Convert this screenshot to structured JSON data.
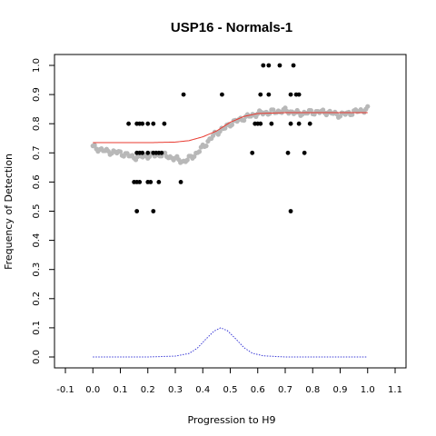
{
  "chart_data": {
    "type": "scatter",
    "title": "USP16 - Normals-1",
    "xlabel": "Progression to H9",
    "ylabel": "Frequency of Detection",
    "xlim": [
      -0.1,
      1.1
    ],
    "ylim": [
      0.0,
      1.0
    ],
    "x_ticks": [
      "-0.1",
      "0.0",
      "0.1",
      "0.2",
      "0.3",
      "0.4",
      "0.5",
      "0.6",
      "0.7",
      "0.8",
      "0.9",
      "1.0",
      "1.1"
    ],
    "y_ticks": [
      "0.0",
      "0.1",
      "0.2",
      "0.3",
      "0.4",
      "0.5",
      "0.6",
      "0.7",
      "0.8",
      "0.9",
      "1.0"
    ],
    "grid": false,
    "legend": "none",
    "series": [
      {
        "kind": "scatter",
        "color": "#000000",
        "points": [
          [
            0.13,
            0.8
          ],
          [
            0.16,
            0.8
          ],
          [
            0.17,
            0.8
          ],
          [
            0.18,
            0.8
          ],
          [
            0.2,
            0.8
          ],
          [
            0.22,
            0.8
          ],
          [
            0.26,
            0.8
          ],
          [
            0.16,
            0.7
          ],
          [
            0.17,
            0.7
          ],
          [
            0.18,
            0.7
          ],
          [
            0.2,
            0.7
          ],
          [
            0.22,
            0.7
          ],
          [
            0.23,
            0.7
          ],
          [
            0.24,
            0.7
          ],
          [
            0.25,
            0.7
          ],
          [
            0.15,
            0.6
          ],
          [
            0.16,
            0.6
          ],
          [
            0.17,
            0.6
          ],
          [
            0.2,
            0.6
          ],
          [
            0.21,
            0.6
          ],
          [
            0.24,
            0.6
          ],
          [
            0.32,
            0.6
          ],
          [
            0.16,
            0.5
          ],
          [
            0.22,
            0.5
          ],
          [
            0.33,
            0.9
          ],
          [
            0.47,
            0.9
          ],
          [
            0.58,
            0.7
          ],
          [
            0.59,
            0.8
          ],
          [
            0.6,
            0.8
          ],
          [
            0.61,
            0.8
          ],
          [
            0.61,
            0.9
          ],
          [
            0.62,
            1.0
          ],
          [
            0.64,
            1.0
          ],
          [
            0.64,
            0.9
          ],
          [
            0.65,
            0.8
          ],
          [
            0.68,
            1.0
          ],
          [
            0.71,
            0.7
          ],
          [
            0.72,
            0.9
          ],
          [
            0.72,
            0.8
          ],
          [
            0.72,
            0.5
          ],
          [
            0.73,
            1.0
          ],
          [
            0.74,
            0.9
          ],
          [
            0.75,
            0.9
          ],
          [
            0.75,
            0.8
          ],
          [
            0.77,
            0.7
          ],
          [
            0.79,
            0.8
          ]
        ]
      },
      {
        "kind": "moving-average",
        "color": "#b8b8b8",
        "x": [
          0.0,
          0.05,
          0.1,
          0.15,
          0.2,
          0.25,
          0.3,
          0.33,
          0.35,
          0.38,
          0.4,
          0.43,
          0.45,
          0.48,
          0.5,
          0.55,
          0.6,
          0.65,
          0.7,
          0.75,
          0.8,
          0.85,
          0.9,
          0.95,
          1.0
        ],
        "y": [
          0.72,
          0.705,
          0.7,
          0.685,
          0.69,
          0.695,
          0.68,
          0.67,
          0.68,
          0.7,
          0.72,
          0.75,
          0.77,
          0.785,
          0.8,
          0.82,
          0.835,
          0.84,
          0.845,
          0.835,
          0.84,
          0.84,
          0.83,
          0.84,
          0.85
        ]
      },
      {
        "kind": "fitted-curve",
        "color": "#e8392f",
        "x": [
          0.0,
          0.1,
          0.2,
          0.3,
          0.35,
          0.4,
          0.45,
          0.5,
          0.55,
          0.6,
          0.7,
          0.8,
          0.9,
          1.0
        ],
        "y": [
          0.735,
          0.735,
          0.735,
          0.737,
          0.742,
          0.755,
          0.775,
          0.805,
          0.825,
          0.835,
          0.838,
          0.838,
          0.838,
          0.838
        ]
      },
      {
        "kind": "density",
        "color": "#3a3ad6",
        "x": [
          0.0,
          0.2,
          0.3,
          0.35,
          0.38,
          0.41,
          0.44,
          0.465,
          0.49,
          0.52,
          0.55,
          0.58,
          0.62,
          0.7,
          0.8,
          1.0
        ],
        "y": [
          0.0,
          0.0,
          0.003,
          0.012,
          0.03,
          0.06,
          0.088,
          0.1,
          0.09,
          0.062,
          0.032,
          0.013,
          0.004,
          0.0,
          0.0,
          0.0
        ]
      }
    ]
  }
}
